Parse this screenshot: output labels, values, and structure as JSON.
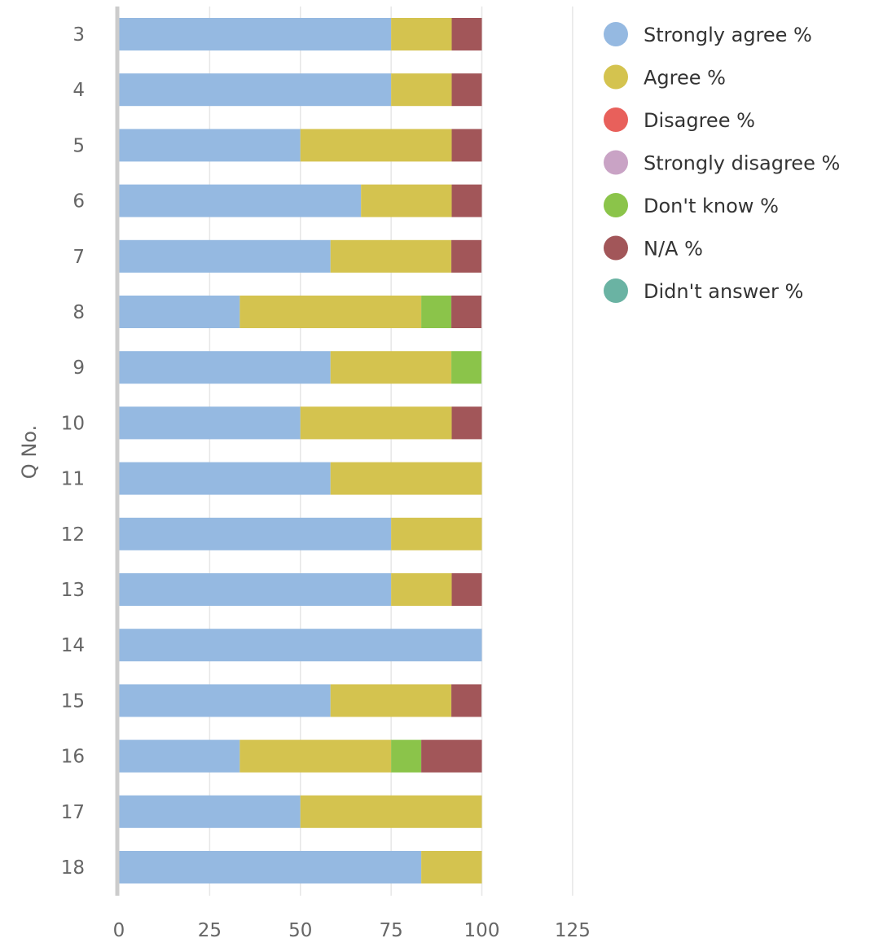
{
  "chart_data": {
    "type": "bar",
    "orientation": "horizontal",
    "stacked": true,
    "title": "",
    "xlabel": "",
    "ylabel": "Q No.",
    "xlim": [
      0,
      125
    ],
    "xticks": [
      "0",
      "25",
      "50",
      "75",
      "100",
      "125"
    ],
    "grid": true,
    "legend_position": "right",
    "categories": [
      "3",
      "4",
      "5",
      "6",
      "7",
      "8",
      "9",
      "10",
      "11",
      "12",
      "13",
      "14",
      "15",
      "16",
      "17",
      "18"
    ],
    "series": [
      {
        "name": "Strongly agree %",
        "color": "#95b9e1",
        "values": [
          75,
          75,
          50,
          66.7,
          58.3,
          33.3,
          58.3,
          50,
          58.3,
          75,
          75,
          100,
          58.3,
          33.3,
          50,
          83.3
        ]
      },
      {
        "name": "Agree %",
        "color": "#d4c34f",
        "values": [
          16.7,
          16.7,
          41.7,
          25,
          33.3,
          50,
          33.3,
          41.7,
          41.7,
          25,
          16.7,
          0,
          33.3,
          41.7,
          50,
          16.7
        ]
      },
      {
        "name": "Disagree %",
        "color": "#e8605b",
        "values": [
          0,
          0,
          0,
          0,
          0,
          0,
          0,
          0,
          0,
          0,
          0,
          0,
          0,
          0,
          0,
          0
        ]
      },
      {
        "name": "Strongly disagree %",
        "color": "#c9a3c5",
        "values": [
          0,
          0,
          0,
          0,
          0,
          0,
          0,
          0,
          0,
          0,
          0,
          0,
          0,
          0,
          0,
          0
        ]
      },
      {
        "name": "Don't know %",
        "color": "#8bc44a",
        "values": [
          0,
          0,
          0,
          0,
          0,
          8.3,
          8.3,
          0,
          0,
          0,
          0,
          0,
          0,
          8.3,
          0,
          0
        ]
      },
      {
        "name": "N/A %",
        "color": "#a25659",
        "values": [
          8.3,
          8.3,
          8.3,
          8.3,
          8.3,
          8.3,
          0,
          8.3,
          0,
          0,
          8.3,
          0,
          8.3,
          16.7,
          0,
          0
        ]
      },
      {
        "name": "Didn't answer %",
        "color": "#6ab3a3",
        "values": [
          0,
          0,
          0,
          0,
          0,
          0,
          0,
          0,
          0,
          0,
          0,
          0,
          0,
          0,
          0,
          0
        ]
      }
    ]
  }
}
